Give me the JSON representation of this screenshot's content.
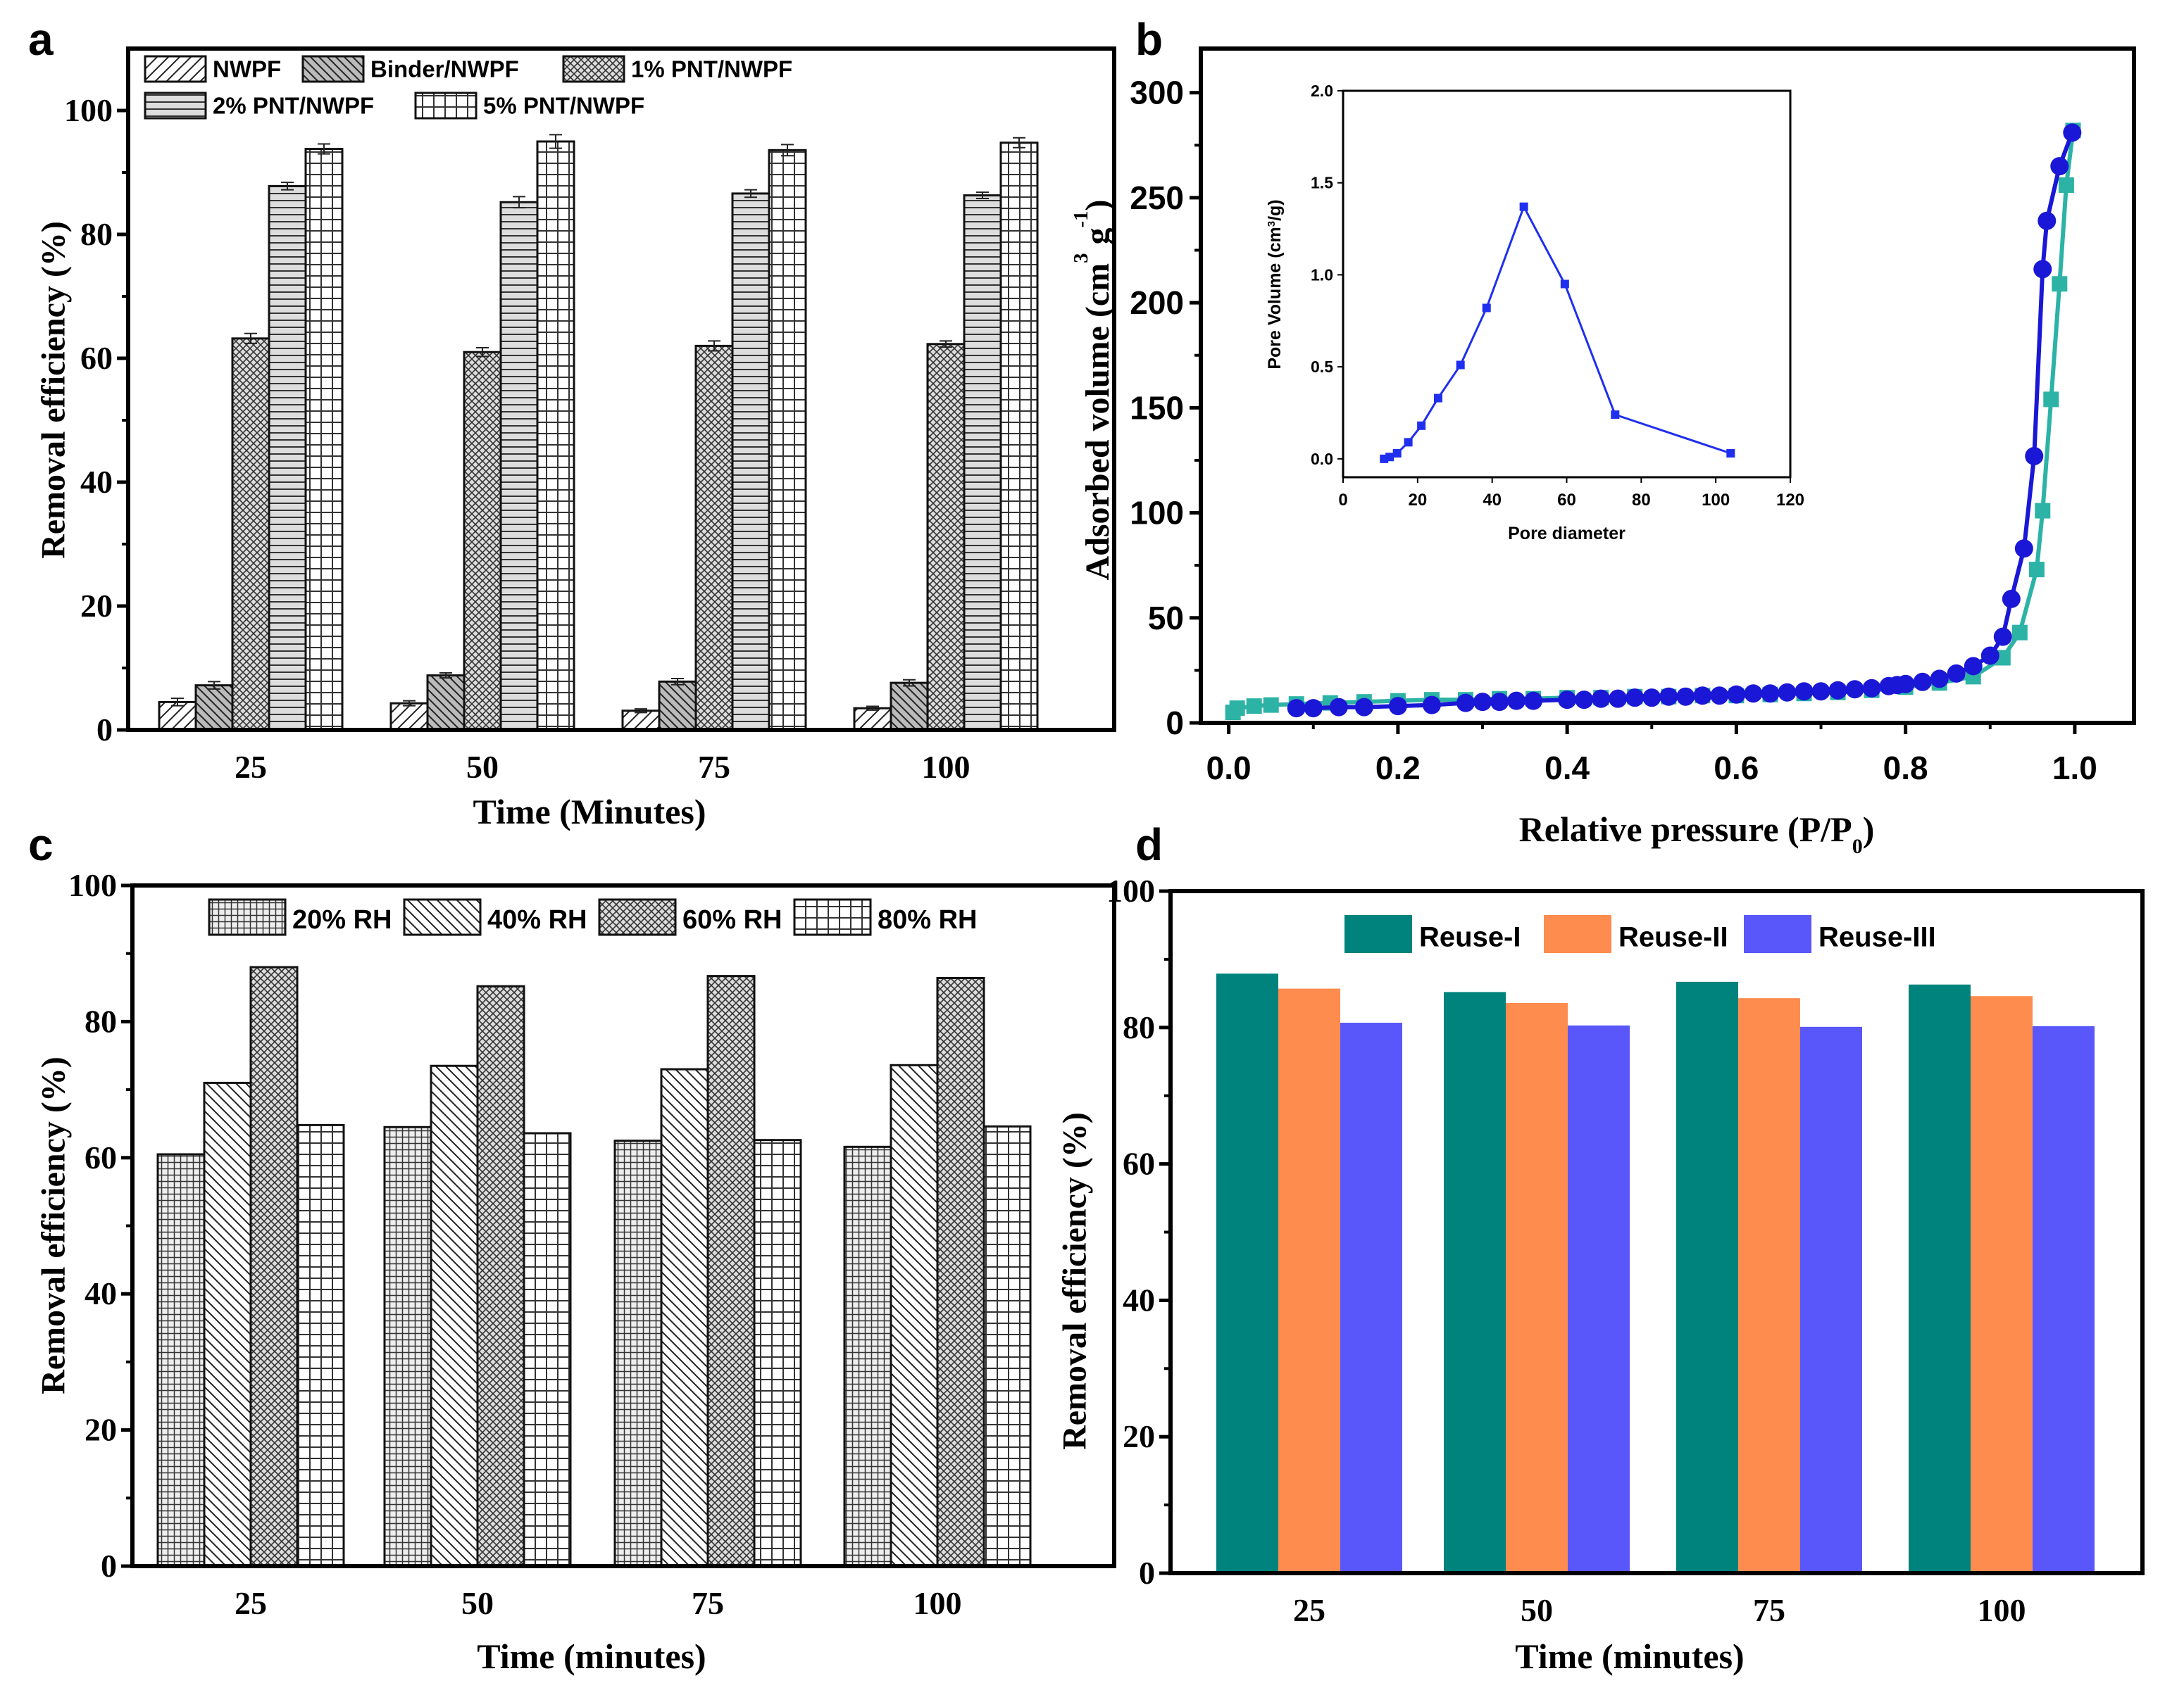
{
  "panels": {
    "a": "a",
    "b": "b",
    "c": "c",
    "d": "d"
  },
  "chart_data": [
    {
      "type": "bar",
      "panel": "a",
      "categories": [
        "25",
        "50",
        "75",
        "100"
      ],
      "xlabel": "Time (Minutes)",
      "ylabel": "Removal efficiency (%)",
      "ylim": [
        0,
        110
      ],
      "yticks": [
        "0",
        "20",
        "40",
        "60",
        "80",
        "100"
      ],
      "grid": false,
      "legend_position": "top-left",
      "series": [
        {
          "name": "NWPF",
          "hatch": "diagonal-sparse",
          "values": [
            4.5,
            4.3,
            3.1,
            3.5
          ],
          "errors": [
            0.6,
            0.4,
            0.3,
            0.3
          ]
        },
        {
          "name": "Binder/NWPF",
          "hatch": "back-diagonal-gray",
          "values": [
            7.2,
            8.8,
            7.8,
            7.6
          ],
          "errors": [
            0.6,
            0.4,
            0.5,
            0.5
          ]
        },
        {
          "name": "1% PNT/NWPF",
          "hatch": "crosshatch",
          "values": [
            63.2,
            61.0,
            62.0,
            62.3
          ],
          "errors": [
            0.8,
            0.7,
            0.8,
            0.5
          ]
        },
        {
          "name": "2% PNT/NWPF",
          "hatch": "horizontal",
          "values": [
            87.8,
            85.2,
            86.6,
            86.3
          ],
          "errors": [
            0.6,
            0.9,
            0.6,
            0.5
          ]
        },
        {
          "name": "5% PNT/NWPF",
          "hatch": "grid",
          "values": [
            93.8,
            95.0,
            93.6,
            94.8
          ],
          "errors": [
            0.8,
            1.1,
            0.9,
            0.8
          ]
        }
      ]
    },
    {
      "type": "scatter",
      "panel": "b",
      "xlabel_parts": [
        {
          "t": "Relative pressure (P/P"
        },
        {
          "t": "0",
          "s": "sub"
        },
        {
          "t": ")"
        }
      ],
      "ylabel_parts": [
        {
          "t": "Adsorbed volume (cm"
        },
        {
          "t": "3",
          "s": "sup"
        },
        {
          "t": " g"
        },
        {
          "t": "-1",
          "s": "sup"
        },
        {
          "t": ")"
        }
      ],
      "xlim": [
        -0.033,
        1.07
      ],
      "ylim": [
        0,
        321
      ],
      "xticks": [
        "0.0",
        "0.2",
        "0.4",
        "0.6",
        "0.8",
        "1.0"
      ],
      "yticks": [
        "0",
        "50",
        "100",
        "150",
        "200",
        "250",
        "300"
      ],
      "series": [
        {
          "name": "desorption",
          "marker": "square",
          "color": "#2cb3a6",
          "points": [
            [
              0.005,
              5
            ],
            [
              0.01,
              7
            ],
            [
              0.03,
              8
            ],
            [
              0.05,
              8.5
            ],
            [
              0.08,
              9
            ],
            [
              0.12,
              9.5
            ],
            [
              0.16,
              10
            ],
            [
              0.2,
              10.5
            ],
            [
              0.24,
              11
            ],
            [
              0.28,
              11
            ],
            [
              0.32,
              11.5
            ],
            [
              0.36,
              11.5
            ],
            [
              0.4,
              12
            ],
            [
              0.44,
              12
            ],
            [
              0.48,
              12.5
            ],
            [
              0.52,
              12.5
            ],
            [
              0.56,
              13
            ],
            [
              0.6,
              13
            ],
            [
              0.64,
              13.5
            ],
            [
              0.68,
              14
            ],
            [
              0.72,
              14.5
            ],
            [
              0.76,
              15.5
            ],
            [
              0.8,
              17
            ],
            [
              0.84,
              19
            ],
            [
              0.88,
              22
            ],
            [
              0.915,
              31
            ],
            [
              0.935,
              43
            ],
            [
              0.955,
              73
            ],
            [
              0.962,
              101
            ],
            [
              0.972,
              154
            ],
            [
              0.982,
              209
            ],
            [
              0.99,
              256
            ],
            [
              0.998,
              282
            ]
          ]
        },
        {
          "name": "adsorption",
          "marker": "circle",
          "color": "#1a17d6",
          "points": [
            [
              0.08,
              7
            ],
            [
              0.1,
              7
            ],
            [
              0.13,
              7.5
            ],
            [
              0.16,
              7.5
            ],
            [
              0.2,
              8
            ],
            [
              0.24,
              8.5
            ],
            [
              0.28,
              9.5
            ],
            [
              0.3,
              10
            ],
            [
              0.32,
              10
            ],
            [
              0.34,
              10.5
            ],
            [
              0.36,
              10.5
            ],
            [
              0.4,
              11
            ],
            [
              0.42,
              11
            ],
            [
              0.44,
              11.5
            ],
            [
              0.46,
              11.5
            ],
            [
              0.48,
              12
            ],
            [
              0.5,
              12
            ],
            [
              0.52,
              12.5
            ],
            [
              0.54,
              12.5
            ],
            [
              0.56,
              13
            ],
            [
              0.58,
              13
            ],
            [
              0.6,
              13.5
            ],
            [
              0.62,
              14
            ],
            [
              0.64,
              14
            ],
            [
              0.66,
              14.5
            ],
            [
              0.68,
              15
            ],
            [
              0.7,
              15
            ],
            [
              0.72,
              15.5
            ],
            [
              0.74,
              16
            ],
            [
              0.76,
              16.5
            ],
            [
              0.78,
              17.5
            ],
            [
              0.79,
              18
            ],
            [
              0.8,
              18.5
            ],
            [
              0.82,
              19.5
            ],
            [
              0.84,
              21
            ],
            [
              0.86,
              23.5
            ],
            [
              0.88,
              27
            ],
            [
              0.9,
              32
            ],
            [
              0.915,
              41
            ],
            [
              0.925,
              59
            ],
            [
              0.94,
              83
            ],
            [
              0.952,
              127
            ],
            [
              0.962,
              216
            ],
            [
              0.967,
              239
            ],
            [
              0.982,
              265
            ],
            [
              0.997,
              281
            ]
          ]
        }
      ],
      "inset": {
        "type": "line",
        "xlabel": "Pore diameter",
        "ylabel_parts": [
          {
            "t": "Pore Volume (cm"
          },
          {
            "t": "3",
            "s": "sup"
          },
          {
            "t": "/g)"
          }
        ],
        "xlim": [
          0,
          120
        ],
        "ylim": [
          -0.1,
          2.0
        ],
        "xticks": [
          "0",
          "20",
          "40",
          "60",
          "80",
          "100",
          "120"
        ],
        "yticks": [
          "0.0",
          "0.5",
          "1.0",
          "1.5",
          "2.0"
        ],
        "color": "#1f2ff0",
        "points": [
          [
            11,
            0.0
          ],
          [
            12.5,
            0.01
          ],
          [
            14.5,
            0.03
          ],
          [
            17.5,
            0.09
          ],
          [
            21,
            0.18
          ],
          [
            25.5,
            0.33
          ],
          [
            31.5,
            0.51
          ],
          [
            38.5,
            0.82
          ],
          [
            48.5,
            1.37
          ],
          [
            59.5,
            0.95
          ],
          [
            73,
            0.24
          ],
          [
            104,
            0.03
          ]
        ]
      }
    },
    {
      "type": "bar",
      "panel": "c",
      "categories": [
        "25",
        "50",
        "75",
        "100"
      ],
      "xlabel": "Time (minutes)",
      "ylabel": "Removal efficiency (%)",
      "ylim": [
        0,
        100
      ],
      "yticks": [
        "0",
        "20",
        "40",
        "60",
        "80",
        "100"
      ],
      "grid": false,
      "legend_position": "top",
      "series": [
        {
          "name": "20% RH",
          "hatch": "fine-grid",
          "values": [
            60.5,
            64.5,
            62.5,
            61.6
          ]
        },
        {
          "name": "40% RH",
          "hatch": "back-diagonal",
          "values": [
            71.0,
            73.5,
            73.0,
            73.6
          ]
        },
        {
          "name": "60% RH",
          "hatch": "crosshatch",
          "values": [
            88.0,
            85.2,
            86.7,
            86.4
          ]
        },
        {
          "name": "80% RH",
          "hatch": "grid",
          "values": [
            64.8,
            63.6,
            62.6,
            64.6
          ]
        }
      ]
    },
    {
      "type": "bar",
      "panel": "d",
      "categories": [
        "25",
        "50",
        "75",
        "100"
      ],
      "xlabel": "Time (minutes)",
      "ylabel": "Removal efficiency (%)",
      "ylim": [
        0,
        100
      ],
      "yticks": [
        "0",
        "20",
        "40",
        "60",
        "80",
        "100"
      ],
      "grid": false,
      "legend_position": "top",
      "series": [
        {
          "name": "Reuse-I",
          "color": "#00837c",
          "values": [
            87.9,
            85.2,
            86.7,
            86.3
          ]
        },
        {
          "name": "Reuse-II",
          "color": "#fd8c4e",
          "values": [
            85.7,
            83.6,
            84.3,
            84.6
          ]
        },
        {
          "name": "Reuse-III",
          "color": "#5957fa",
          "values": [
            80.7,
            80.3,
            80.1,
            80.2
          ]
        }
      ]
    }
  ]
}
